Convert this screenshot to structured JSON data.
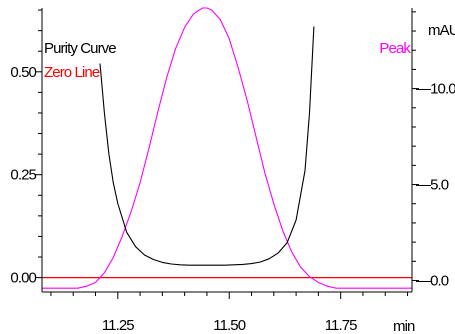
{
  "chart_data": {
    "type": "line",
    "title": "",
    "xlabel": "min",
    "ylabel_left": "",
    "ylabel_right": "mAU",
    "xlim": [
      11.08,
      11.91
    ],
    "ylim_left": [
      -0.035,
      0.655
    ],
    "ylim_right": [
      -0.6,
      14.2
    ],
    "x_ticks": [
      11.25,
      11.5,
      11.75
    ],
    "x_tick_labels": [
      "11.25",
      "11.50",
      "11.75"
    ],
    "y_left_ticks": [
      0.0,
      0.25,
      0.5
    ],
    "y_left_tick_labels": [
      "0.00",
      "0.25",
      "0.50"
    ],
    "y_right_ticks": [
      0.0,
      5.0,
      10.0
    ],
    "y_right_tick_labels": [
      "0.0",
      "5.0",
      "10.0"
    ],
    "grid": false,
    "legend": [
      {
        "label": "Purity Curve",
        "color": "#000000",
        "position": "top-left"
      },
      {
        "label": "Zero Line",
        "color": "#ff0000",
        "position": "top-left"
      },
      {
        "label": "Peak",
        "color": "#ff00ff",
        "position": "top-right"
      }
    ],
    "series": [
      {
        "name": "Purity Curve",
        "axis": "left",
        "color": "#000000",
        "x": [
          11.21,
          11.22,
          11.23,
          11.24,
          11.25,
          11.27,
          11.29,
          11.31,
          11.33,
          11.35,
          11.37,
          11.39,
          11.41,
          11.43,
          11.45,
          11.47,
          11.49,
          11.51,
          11.53,
          11.55,
          11.57,
          11.59,
          11.61,
          11.63,
          11.65,
          11.67,
          11.68,
          11.69
        ],
        "y": [
          0.52,
          0.4,
          0.3,
          0.23,
          0.18,
          0.11,
          0.075,
          0.055,
          0.044,
          0.037,
          0.033,
          0.031,
          0.03,
          0.03,
          0.03,
          0.03,
          0.03,
          0.031,
          0.032,
          0.034,
          0.038,
          0.046,
          0.06,
          0.085,
          0.14,
          0.26,
          0.4,
          0.61
        ]
      },
      {
        "name": "Peak",
        "axis": "right",
        "color": "#ff00ff",
        "x": [
          11.08,
          11.16,
          11.18,
          11.2,
          11.22,
          11.24,
          11.26,
          11.28,
          11.3,
          11.32,
          11.34,
          11.36,
          11.38,
          11.4,
          11.42,
          11.44,
          11.45,
          11.46,
          11.48,
          11.5,
          11.52,
          11.54,
          11.56,
          11.58,
          11.6,
          11.62,
          11.64,
          11.66,
          11.68,
          11.7,
          11.72,
          11.74,
          11.91
        ],
        "y": [
          -0.4,
          -0.4,
          -0.3,
          -0.1,
          0.4,
          1.2,
          2.3,
          3.6,
          5.1,
          6.9,
          8.8,
          10.6,
          12.1,
          13.2,
          13.9,
          14.2,
          14.2,
          14.1,
          13.6,
          12.6,
          11.1,
          9.4,
          7.5,
          5.6,
          4.0,
          2.6,
          1.5,
          0.7,
          0.2,
          -0.1,
          -0.3,
          -0.4,
          -0.4
        ]
      },
      {
        "name": "Zero Line",
        "axis": "left",
        "color": "#ff0000",
        "x": [
          11.08,
          11.91
        ],
        "y": [
          0.0,
          0.0
        ]
      }
    ]
  }
}
